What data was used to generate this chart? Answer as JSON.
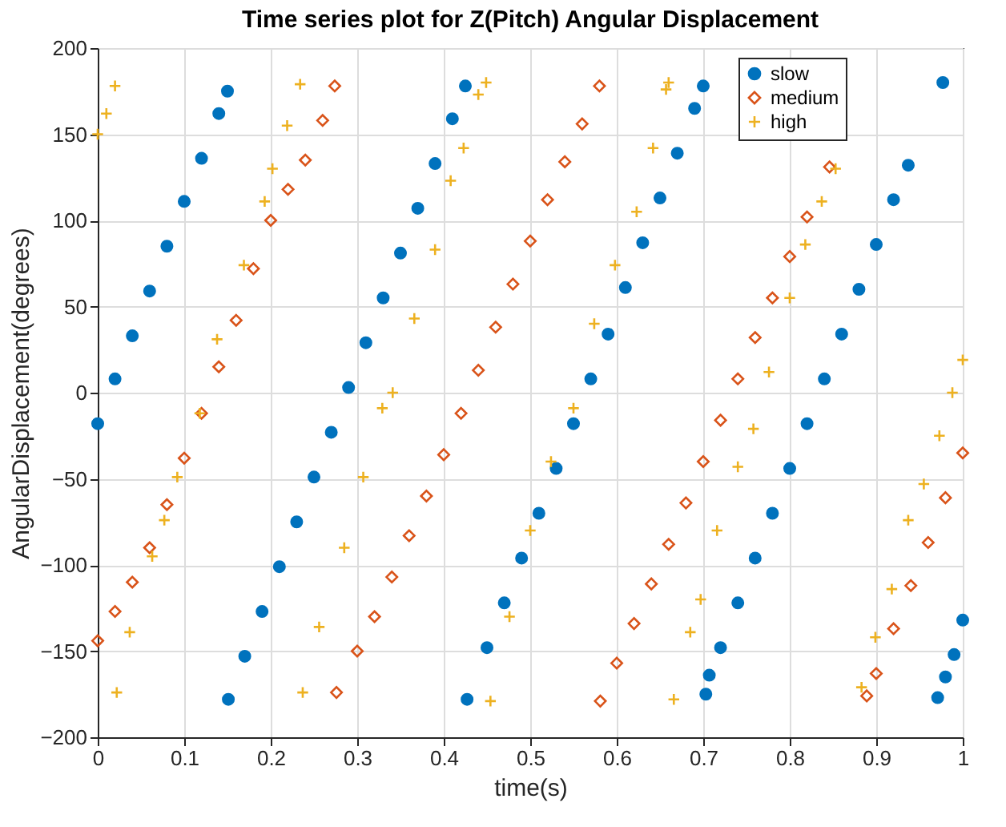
{
  "chart_data": {
    "type": "scatter",
    "title": "Time series plot for Z(Pitch) Angular Displacement",
    "xlabel": "time(s)",
    "ylabel": "AngularDisplacement(degrees)",
    "xlim": [
      0,
      1
    ],
    "xticks": [
      0,
      0.1,
      0.2,
      0.3,
      0.4,
      0.5,
      0.6,
      0.7,
      0.8,
      0.9,
      1
    ],
    "ylim": [
      -200,
      200
    ],
    "yticks": [
      -200,
      -150,
      -100,
      -50,
      0,
      50,
      100,
      150,
      200
    ],
    "grid": true,
    "legend": "top right",
    "series": [
      {
        "name": "slow",
        "color": "#0072bd",
        "marker": "circle",
        "x": [
          0,
          0.02,
          0.04,
          0.06,
          0.08,
          0.1,
          0.12,
          0.14,
          0.15,
          0.151,
          0.17,
          0.19,
          0.21,
          0.23,
          0.25,
          0.27,
          0.29,
          0.31,
          0.33,
          0.35,
          0.37,
          0.39,
          0.41,
          0.425,
          0.427,
          0.45,
          0.47,
          0.49,
          0.51,
          0.53,
          0.55,
          0.57,
          0.59,
          0.61,
          0.63,
          0.65,
          0.67,
          0.69,
          0.7,
          0.703,
          0.707,
          0.72,
          0.74,
          0.76,
          0.78,
          0.8,
          0.82,
          0.84,
          0.86,
          0.88,
          0.9,
          0.92,
          0.937,
          0.977,
          0.971,
          0.98,
          0.99,
          1.0
        ],
        "values": [
          -18,
          8,
          33,
          59,
          85,
          111,
          136,
          162,
          175,
          -178,
          -153,
          -127,
          -101,
          -75,
          -49,
          -23,
          3,
          29,
          55,
          81,
          107,
          133,
          159,
          178,
          -178,
          -148,
          -122,
          -96,
          -70,
          -44,
          -18,
          8,
          34,
          61,
          87,
          113,
          139,
          165,
          178,
          -175,
          -164,
          -148,
          -122,
          -96,
          -70,
          -44,
          -18,
          8,
          34,
          60,
          86,
          112,
          132,
          180,
          -177,
          -165,
          -152,
          -132
        ]
      },
      {
        "name": "medium",
        "color": "#d95319",
        "marker": "diamond",
        "x": [
          0,
          0.02,
          0.04,
          0.06,
          0.08,
          0.1,
          0.12,
          0.14,
          0.16,
          0.18,
          0.2,
          0.22,
          0.24,
          0.26,
          0.274,
          0.276,
          0.3,
          0.32,
          0.34,
          0.36,
          0.38,
          0.4,
          0.42,
          0.44,
          0.46,
          0.48,
          0.5,
          0.52,
          0.54,
          0.56,
          0.58,
          0.581,
          0.6,
          0.62,
          0.64,
          0.66,
          0.68,
          0.7,
          0.72,
          0.74,
          0.76,
          0.78,
          0.8,
          0.82,
          0.846,
          0.889,
          0.9,
          0.92,
          0.94,
          0.96,
          0.98,
          1.0
        ],
        "values": [
          -144,
          -127,
          -110,
          -90,
          -65,
          -38,
          -12,
          15,
          42,
          72,
          100,
          118,
          135,
          158,
          178,
          -174,
          -150,
          -130,
          -107,
          -83,
          -60,
          -36,
          -12,
          13,
          38,
          63,
          88,
          112,
          134,
          156,
          178,
          -179,
          -157,
          -134,
          -111,
          -88,
          -64,
          -40,
          -16,
          8,
          32,
          55,
          79,
          102,
          131,
          -176,
          -163,
          -137,
          -112,
          -87,
          -61,
          -35
        ]
      },
      {
        "name": "high",
        "color": "#edb120",
        "marker": "cross",
        "x": [
          0,
          0.01,
          0.02,
          0.022,
          0.037,
          0.063,
          0.077,
          0.092,
          0.118,
          0.138,
          0.169,
          0.193,
          0.202,
          0.219,
          0.234,
          0.237,
          0.256,
          0.285,
          0.307,
          0.329,
          0.341,
          0.366,
          0.39,
          0.408,
          0.423,
          0.44,
          0.449,
          0.454,
          0.476,
          0.5,
          0.524,
          0.55,
          0.574,
          0.598,
          0.623,
          0.642,
          0.657,
          0.66,
          0.666,
          0.685,
          0.697,
          0.716,
          0.74,
          0.758,
          0.776,
          0.8,
          0.818,
          0.837,
          0.853,
          0.883,
          0.899,
          0.918,
          0.937,
          0.955,
          0.973,
          0.988,
          1.0
        ],
        "values": [
          150,
          162,
          178,
          -174,
          -139,
          -95,
          -74,
          -49,
          -12,
          31,
          74,
          111,
          130,
          155,
          179,
          -174,
          -136,
          -90,
          -49,
          -9,
          0,
          43,
          83,
          123,
          142,
          173,
          180,
          -179,
          -130,
          -80,
          -40,
          -9,
          40,
          74,
          105,
          142,
          176,
          180,
          -178,
          -139,
          -120,
          -80,
          -43,
          -21,
          12,
          55,
          86,
          111,
          130,
          -171,
          -142,
          -114,
          -74,
          -53,
          -25,
          0,
          19
        ]
      }
    ]
  }
}
